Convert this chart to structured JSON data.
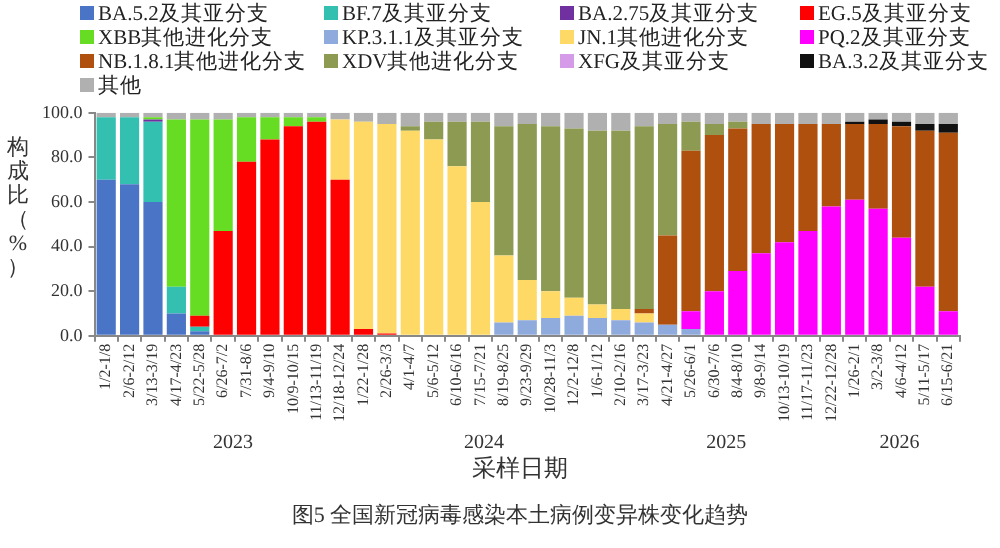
{
  "chart_data": {
    "type": "bar",
    "stacked": true,
    "title": "图5 全国新冠病毒感染本土病例变异株变化趋势",
    "xlabel": "采样日期",
    "ylabel": "构成比（%）",
    "legend": "top",
    "grid": false,
    "categories": [
      "1/2-1/8",
      "2/6-2/12",
      "3/13-3/19",
      "4/17-4/23",
      "5/22-5/28",
      "6/26-7/2",
      "7/31-8/6",
      "9/4-9/10",
      "10/9-10/15",
      "11/13-11/19",
      "12/18-12/24",
      "1/22-1/28",
      "2/26-3/3",
      "4/1-4/7",
      "5/6-5/12",
      "6/10-6/16",
      "7/15-7/21",
      "8/19-8/25",
      "9/23-9/29",
      "10/28-11/3",
      "12/2-12/8",
      "1/6-1/12",
      "2/10-2/16",
      "3/17-3/23",
      "4/21-4/27",
      "5/26-6/1",
      "6/30-7/6",
      "8/4-8/10",
      "9/8-9/14",
      "10/13-10/19",
      "11/17-11/23",
      "12/22-12/28",
      "1/26-2/1",
      "3/2-3/8",
      "4/6-4/12",
      "5/11-5/17",
      "6/15-6/21"
    ],
    "ylim": [
      0,
      100
    ],
    "yticks": [
      {
        "value": 0,
        "label": "0.0"
      },
      {
        "value": 20,
        "label": "20.0"
      },
      {
        "value": 40,
        "label": "40.0"
      },
      {
        "value": 60,
        "label": "60.0"
      },
      {
        "value": 80,
        "label": "80.0"
      },
      {
        "value": 100,
        "label": "100.0"
      }
    ],
    "annotations": [
      "2023",
      "2024",
      "2025",
      "2026"
    ],
    "series": [
      {
        "name": "BA.5.2及其亚分支",
        "color": "#4a74c6",
        "values": [
          70,
          68,
          60,
          10,
          2,
          0,
          0,
          0,
          0,
          0,
          0,
          0,
          0,
          0,
          0,
          0,
          0,
          0,
          0,
          0,
          0,
          0,
          0,
          0,
          0,
          0,
          0,
          0,
          0,
          0,
          0,
          0,
          0,
          0,
          0,
          0,
          0
        ]
      },
      {
        "name": "BF.7及其亚分支",
        "color": "#33c0b0",
        "values": [
          28,
          30,
          36,
          12,
          2,
          0,
          0,
          0,
          0,
          0,
          0,
          0,
          0,
          0,
          0,
          0,
          0,
          0,
          0,
          0,
          0,
          0,
          0,
          0,
          0,
          0,
          0,
          0,
          0,
          0,
          0,
          0,
          0,
          0,
          0,
          0,
          0
        ]
      },
      {
        "name": "BA.2.75及其亚分支",
        "color": "#7030a0",
        "values": [
          0,
          0,
          1,
          0,
          0,
          0,
          0,
          0,
          0,
          0,
          0,
          0,
          0,
          0,
          0,
          0,
          0,
          0,
          0,
          0,
          0,
          0,
          0,
          0,
          0,
          0,
          0,
          0,
          0,
          0,
          0,
          0,
          0,
          0,
          0,
          0,
          0
        ]
      },
      {
        "name": "EG.5及其亚分支",
        "color": "#ff0000",
        "values": [
          0,
          0,
          0,
          0,
          5,
          47,
          78,
          88,
          94,
          96,
          70,
          3,
          1,
          0,
          0,
          0,
          0,
          0,
          0,
          0,
          0,
          0,
          0,
          0,
          0,
          0,
          0,
          0,
          0,
          0,
          0,
          0,
          0,
          0,
          0,
          0,
          0
        ]
      },
      {
        "name": "XBB其他进化分支",
        "color": "#66dd22",
        "values": [
          0,
          0,
          1,
          75,
          88,
          50,
          20,
          10,
          4,
          2,
          0,
          0,
          0,
          0,
          0,
          0,
          0,
          0,
          0,
          0,
          0,
          0,
          0,
          0,
          0,
          0,
          0,
          0,
          0,
          0,
          0,
          0,
          0,
          0,
          0,
          0,
          0
        ]
      },
      {
        "name": "KP.3.1.1及其亚分支",
        "color": "#8faadc",
        "values": [
          0,
          0,
          0,
          0,
          0,
          0,
          0,
          0,
          0,
          0,
          0,
          0,
          0,
          0,
          0,
          0,
          0,
          6,
          7,
          8,
          9,
          8,
          7,
          6,
          5,
          3,
          0,
          0,
          0,
          0,
          0,
          0,
          0,
          0,
          0,
          0,
          0
        ]
      },
      {
        "name": "JN.1其他进化分支",
        "color": "#ffd966",
        "values": [
          0,
          0,
          0,
          0,
          0,
          0,
          0,
          0,
          0,
          0,
          27,
          93,
          94,
          92,
          88,
          76,
          60,
          30,
          18,
          12,
          8,
          6,
          5,
          4,
          0,
          0,
          0,
          0,
          0,
          0,
          0,
          0,
          0,
          0,
          0,
          0,
          0
        ]
      },
      {
        "name": "PQ.2及其亚分支",
        "color": "#ff00ff",
        "values": [
          0,
          0,
          0,
          0,
          0,
          0,
          0,
          0,
          0,
          0,
          0,
          0,
          0,
          0,
          0,
          0,
          0,
          0,
          0,
          0,
          0,
          0,
          0,
          0,
          0,
          8,
          20,
          29,
          37,
          42,
          47,
          58,
          61,
          57,
          44,
          22,
          11
        ]
      },
      {
        "name": "NB.1.8.1其他进化分支",
        "color": "#b0500f",
        "values": [
          0,
          0,
          0,
          0,
          0,
          0,
          0,
          0,
          0,
          0,
          0,
          0,
          0,
          0,
          0,
          0,
          0,
          0,
          0,
          0,
          0,
          0,
          0,
          2,
          40,
          72,
          70,
          64,
          58,
          53,
          48,
          37,
          34,
          38,
          50,
          70,
          80
        ]
      },
      {
        "name": "XDV其他进化分支",
        "color": "#8d9a52",
        "values": [
          0,
          0,
          0,
          0,
          0,
          0,
          0,
          0,
          0,
          0,
          0,
          0,
          0,
          2,
          8,
          20,
          36,
          58,
          70,
          74,
          76,
          78,
          80,
          82,
          50,
          13,
          5,
          3,
          0,
          0,
          0,
          0,
          0,
          0,
          0,
          0,
          0
        ]
      },
      {
        "name": "XFG及其亚分支",
        "color": "#d69be8",
        "values": [
          0,
          0,
          0,
          0,
          0,
          0,
          0,
          0,
          0,
          0,
          0,
          0,
          0,
          0,
          0,
          0,
          0,
          0,
          0,
          0,
          0,
          0,
          0,
          0,
          0,
          0,
          0,
          0,
          0,
          0,
          0,
          0,
          0,
          0,
          0,
          0,
          0
        ]
      },
      {
        "name": "BA.3.2及其亚分支",
        "color": "#111111",
        "values": [
          0,
          0,
          0,
          0,
          0,
          0,
          0,
          0,
          0,
          0,
          0,
          0,
          0,
          0,
          0,
          0,
          0,
          0,
          0,
          0,
          0,
          0,
          0,
          0,
          0,
          0,
          0,
          0,
          0,
          0,
          0,
          0,
          1,
          2,
          2,
          3,
          4
        ]
      },
      {
        "name": "其他",
        "color": "#b0b0b0",
        "values": [
          2,
          2,
          2,
          3,
          3,
          3,
          2,
          2,
          2,
          2,
          3,
          4,
          5,
          6,
          4,
          4,
          4,
          6,
          5,
          6,
          7,
          8,
          8,
          6,
          5,
          4,
          5,
          4,
          5,
          5,
          5,
          5,
          4,
          3,
          4,
          5,
          5
        ]
      }
    ]
  }
}
